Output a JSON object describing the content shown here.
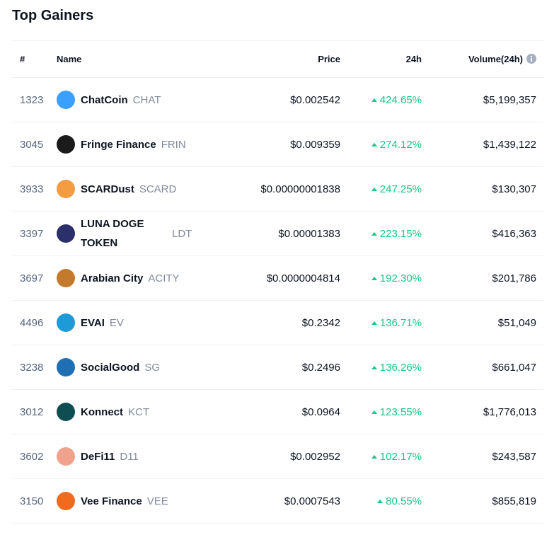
{
  "header": {
    "title": "Top Gainers"
  },
  "table": {
    "columns": [
      "#",
      "Name",
      "Price",
      "24h",
      "Volume(24h)"
    ],
    "rows": [
      {
        "rank": "1323",
        "name": "ChatCoin",
        "symbol": "CHAT",
        "price": "$0.002542",
        "change": "424.65%",
        "volume": "$5,199,357"
      },
      {
        "rank": "3045",
        "name": "Fringe Finance",
        "symbol": "FRIN",
        "price": "$0.009359",
        "change": "274.12%",
        "volume": "$1,439,122"
      },
      {
        "rank": "3933",
        "name": "SCARDust",
        "symbol": "SCARD",
        "price": "$0.00000001838",
        "change": "247.25%",
        "volume": "$130,307"
      },
      {
        "rank": "3397",
        "name": "LUNA DOGE TOKEN",
        "symbol": "LDT",
        "price": "$0.00001383",
        "change": "223.15%",
        "volume": "$416,363"
      },
      {
        "rank": "3697",
        "name": "Arabian City",
        "symbol": "ACITY",
        "price": "$0.0000004814",
        "change": "192.30%",
        "volume": "$201,786"
      },
      {
        "rank": "4496",
        "name": "EVAI",
        "symbol": "EV",
        "price": "$0.2342",
        "change": "136.71%",
        "volume": "$51,049"
      },
      {
        "rank": "3238",
        "name": "SocialGood",
        "symbol": "SG",
        "price": "$0.2496",
        "change": "136.26%",
        "volume": "$661,047"
      },
      {
        "rank": "3012",
        "name": "Konnect",
        "symbol": "KCT",
        "price": "$0.0964",
        "change": "123.55%",
        "volume": "$1,776,013"
      },
      {
        "rank": "3602",
        "name": "DeFi11",
        "symbol": "D11",
        "price": "$0.002952",
        "change": "102.17%",
        "volume": "$243,587"
      },
      {
        "rank": "3150",
        "name": "Vee Finance",
        "symbol": "VEE",
        "price": "$0.0007543",
        "change": "80.55%",
        "volume": "$855,819"
      }
    ]
  }
}
